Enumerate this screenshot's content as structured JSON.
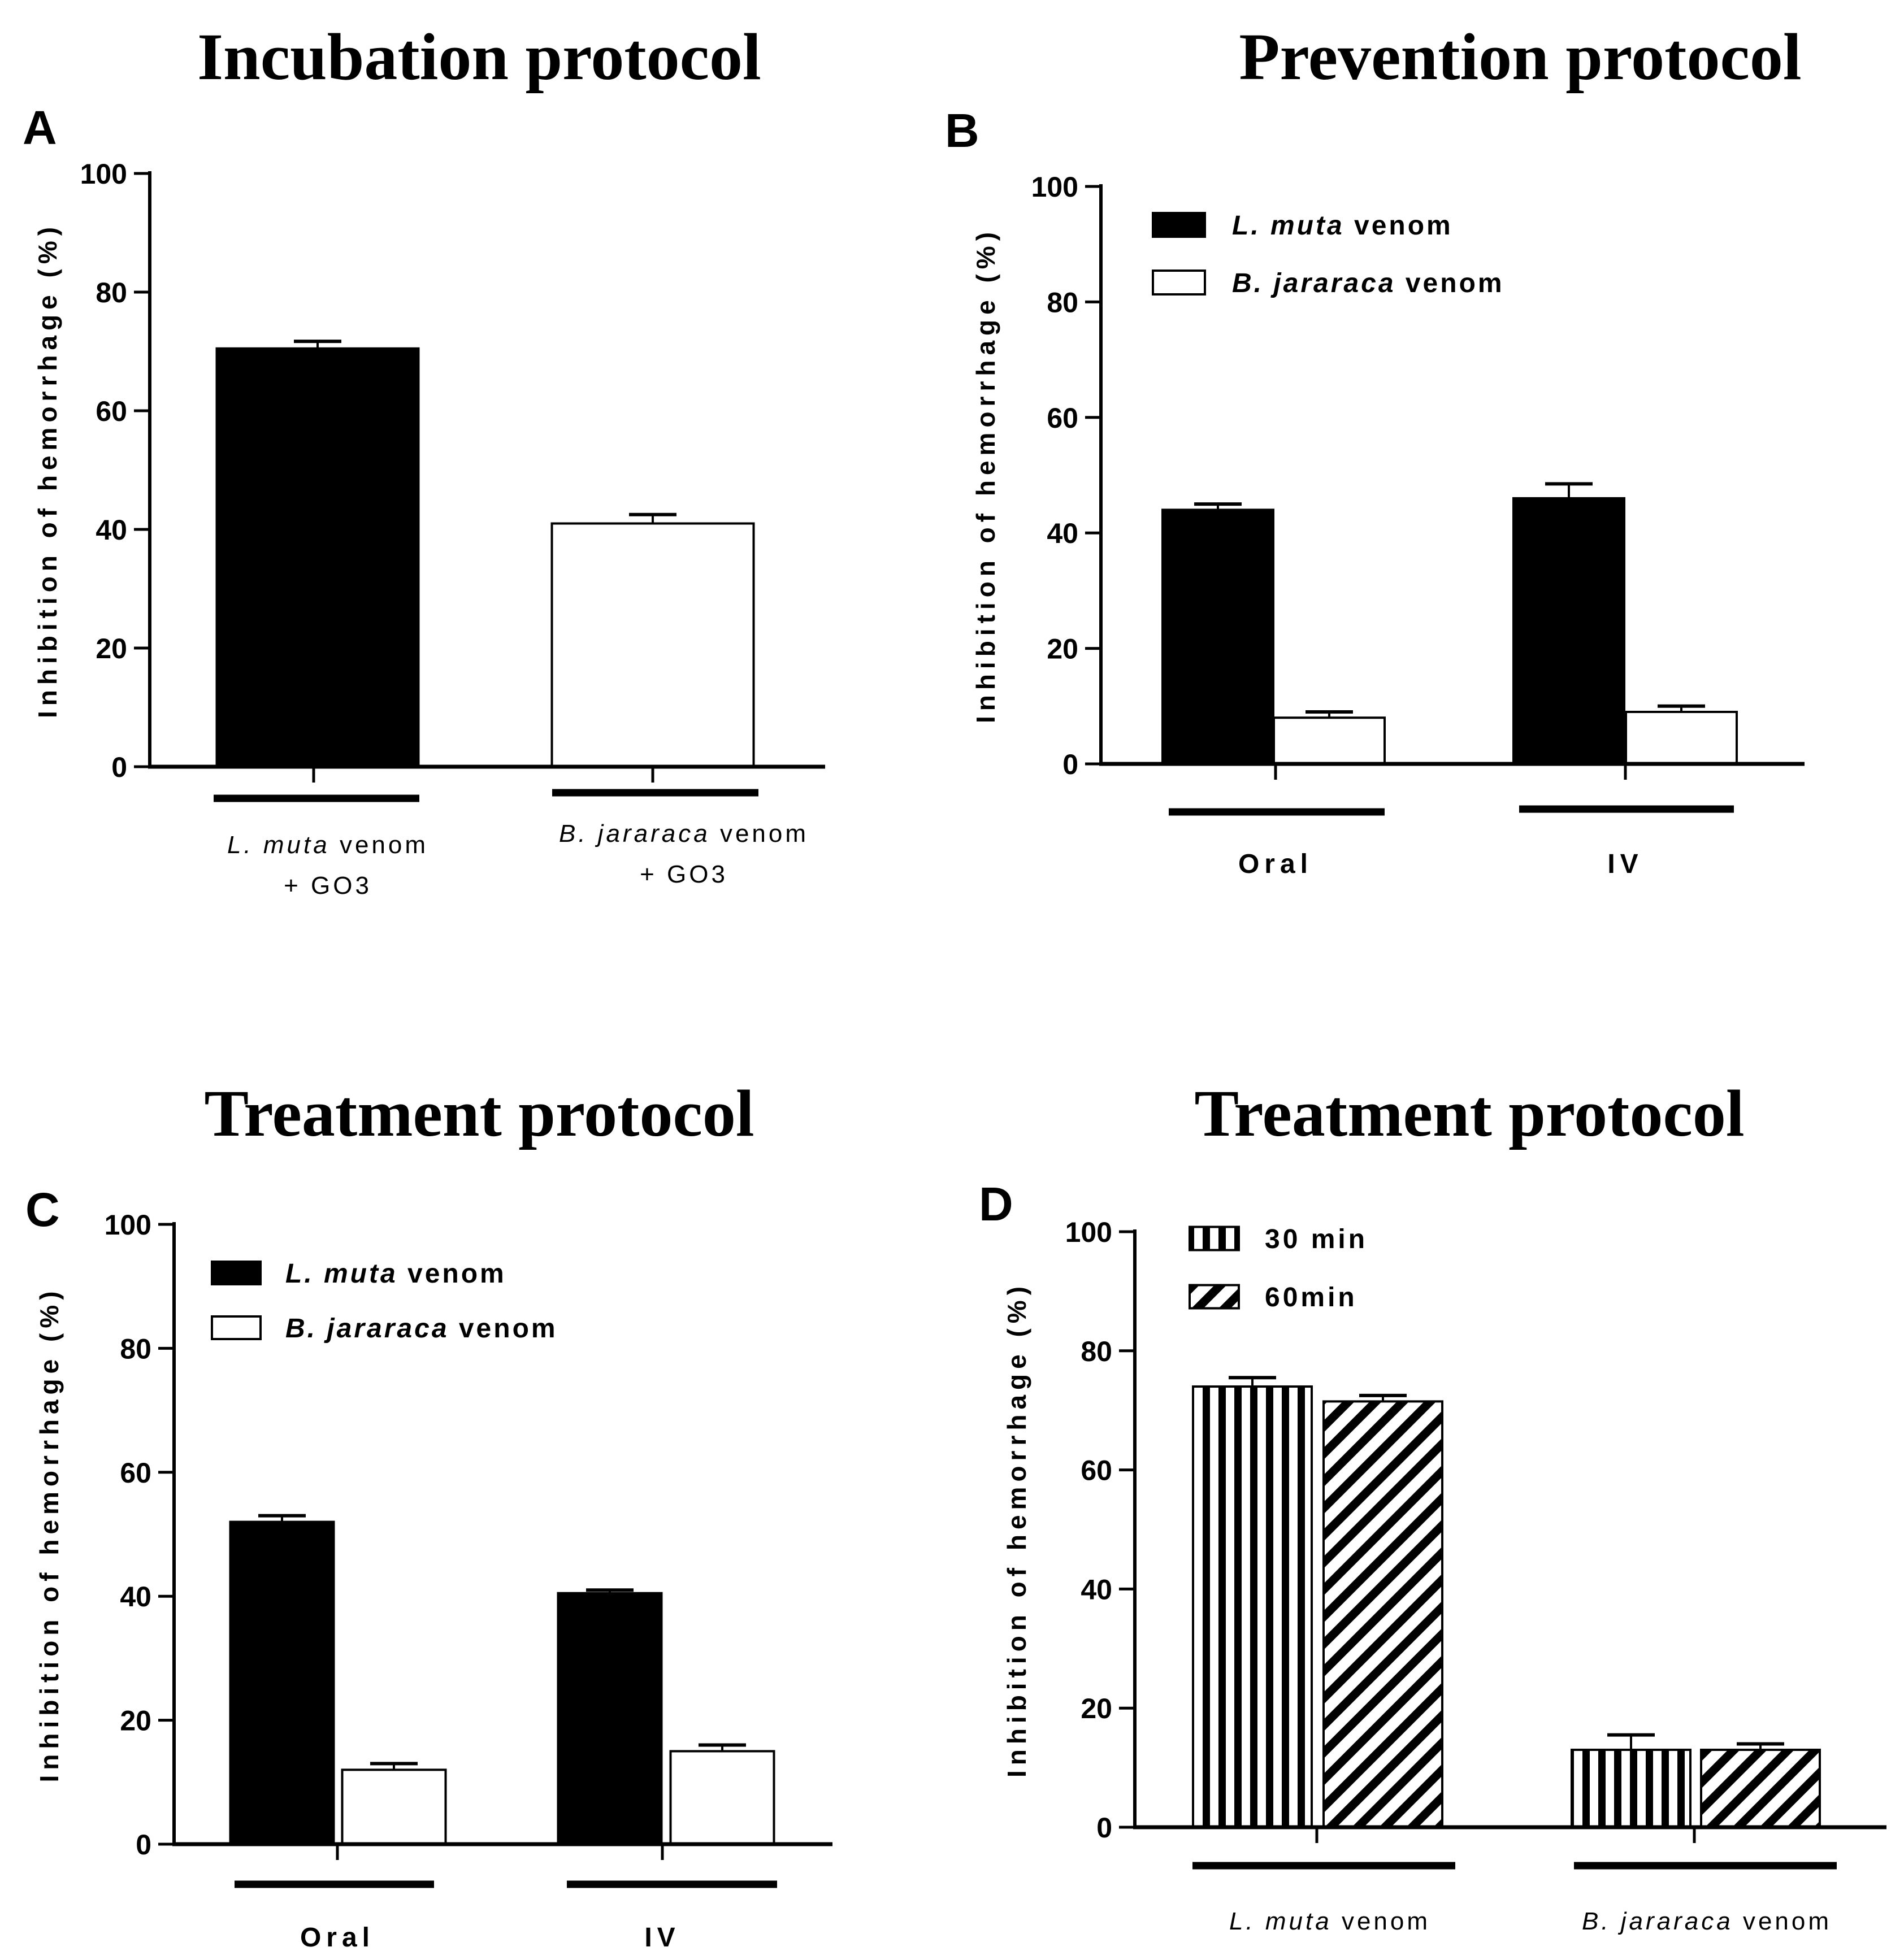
{
  "chart_data": [
    {
      "type": "bar",
      "panel": "A",
      "title": "Incubation protocol",
      "ylabel": "Inhibition of hemorrhage  (%)",
      "ylim": [
        0,
        100
      ],
      "yticks": [
        0,
        20,
        40,
        60,
        80,
        100
      ],
      "categories": [
        [
          {
            "t": "L. muta",
            "i": true
          },
          {
            "t": " venom",
            "i": false
          },
          {
            "br": true
          },
          {
            "t": "+ GO3",
            "i": false
          }
        ],
        [
          {
            "t": "B. jararaca",
            "i": true
          },
          {
            "t": " venom",
            "i": false
          },
          {
            "br": true
          },
          {
            "t": "+ GO3",
            "i": false
          }
        ]
      ],
      "bars": [
        {
          "value": 70.5,
          "error": 1.2,
          "fill": "black"
        },
        {
          "value": 41,
          "error": 1.5,
          "fill": "white"
        }
      ],
      "grid": false
    },
    {
      "type": "bar",
      "panel": "B",
      "title": "Prevention protocol",
      "ylabel": "Inhibition of hemorrhage (%)",
      "ylim": [
        0,
        100
      ],
      "yticks": [
        0,
        20,
        40,
        60,
        80,
        100
      ],
      "categories": [
        "Oral",
        "IV"
      ],
      "legend_position": "top-left",
      "series": [
        {
          "name": [
            {
              "t": "L. muta",
              "i": true
            },
            {
              "t": " venom",
              "i": false
            }
          ],
          "fill": "black",
          "values": [
            44,
            46
          ],
          "errors": [
            1,
            2.5
          ]
        },
        {
          "name": [
            {
              "t": "B. jararaca",
              "i": true
            },
            {
              "t": " venom",
              "i": false
            }
          ],
          "fill": "white",
          "values": [
            8,
            9
          ],
          "errors": [
            1,
            1
          ]
        }
      ],
      "grid": false
    },
    {
      "type": "bar",
      "panel": "C",
      "title": "Treatment protocol",
      "ylabel": "Inhibition of  hemorrhage (%)",
      "ylim": [
        0,
        100
      ],
      "yticks": [
        0,
        20,
        40,
        60,
        80,
        100
      ],
      "categories": [
        "Oral",
        "IV"
      ],
      "legend_position": "top-left",
      "series": [
        {
          "name": [
            {
              "t": "L. muta",
              "i": true
            },
            {
              "t": " venom",
              "i": false
            }
          ],
          "fill": "black",
          "values": [
            52,
            40.5
          ],
          "errors": [
            1,
            0.5
          ]
        },
        {
          "name": [
            {
              "t": "B. jararaca",
              "i": true
            },
            {
              "t": " venom",
              "i": false
            }
          ],
          "fill": "white",
          "values": [
            12,
            15
          ],
          "errors": [
            1,
            1
          ]
        }
      ],
      "grid": false
    },
    {
      "type": "bar",
      "panel": "D",
      "title": "Treatment protocol",
      "ylabel": "Inhibition of hemorrhage (%)",
      "ylim": [
        0,
        100
      ],
      "yticks": [
        0,
        20,
        40,
        60,
        80,
        100
      ],
      "categories": [
        [
          {
            "t": "L. muta",
            "i": true
          },
          {
            "t": " venom",
            "i": false
          }
        ],
        [
          {
            "t": "B. jararaca",
            "i": true
          },
          {
            "t": " venom",
            "i": false
          }
        ]
      ],
      "legend_position": "top-left",
      "series": [
        {
          "name": "30 min",
          "fill": "vertical-stripes",
          "values": [
            74,
            13
          ],
          "errors": [
            1.5,
            2.5
          ]
        },
        {
          "name": "60min",
          "fill": "diagonal-stripes",
          "values": [
            71.5,
            13
          ],
          "errors": [
            1,
            1
          ]
        }
      ],
      "grid": false
    }
  ]
}
